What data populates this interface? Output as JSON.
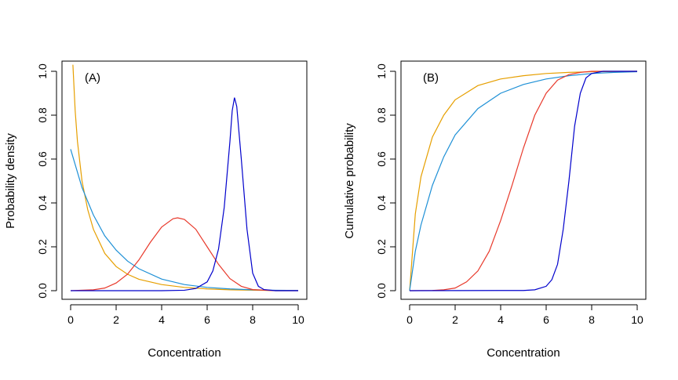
{
  "chart_data": [
    {
      "type": "line",
      "panel_label": "(A)",
      "xlabel": "Concentration",
      "ylabel": "Probability density",
      "xlim": [
        0,
        10
      ],
      "ylim": [
        0,
        1
      ],
      "x_ticks": [
        "0",
        "2",
        "4",
        "6",
        "8",
        "10"
      ],
      "y_ticks": [
        "0.0",
        "0.2",
        "0.4",
        "0.6",
        "0.8",
        "1.0"
      ],
      "grid": false,
      "legend": "none",
      "series": [
        {
          "color": "#E69F00",
          "x": [
            0.1,
            0.2,
            0.3,
            0.5,
            0.75,
            1,
            1.5,
            2,
            2.5,
            3,
            4,
            5,
            6,
            7,
            8,
            9,
            10
          ],
          "values": [
            1.03,
            0.82,
            0.68,
            0.5,
            0.37,
            0.28,
            0.17,
            0.11,
            0.075,
            0.052,
            0.028,
            0.015,
            0.008,
            0.004,
            0.002,
            0.001,
            0.0005
          ]
        },
        {
          "color": "#1E90D6",
          "x": [
            0,
            0.5,
            1,
            1.5,
            2,
            2.5,
            3,
            4,
            5,
            6,
            7,
            8,
            9,
            10
          ],
          "values": [
            0.645,
            0.47,
            0.345,
            0.25,
            0.185,
            0.135,
            0.1,
            0.053,
            0.028,
            0.015,
            0.008,
            0.004,
            0.002,
            0.001
          ]
        },
        {
          "color": "#E8392B",
          "x": [
            0,
            1,
            1.5,
            2,
            2.5,
            3,
            3.5,
            4,
            4.5,
            4.7,
            5,
            5.5,
            6,
            6.5,
            7,
            7.5,
            8,
            9,
            10
          ],
          "values": [
            0,
            0.004,
            0.012,
            0.035,
            0.075,
            0.14,
            0.22,
            0.29,
            0.328,
            0.332,
            0.325,
            0.28,
            0.2,
            0.12,
            0.055,
            0.02,
            0.005,
            0,
            0
          ]
        },
        {
          "color": "#0000CC",
          "x": [
            0,
            4,
            5,
            5.5,
            6,
            6.25,
            6.5,
            6.75,
            7,
            7.1,
            7.2,
            7.3,
            7.5,
            7.75,
            8,
            8.25,
            8.5,
            9,
            10
          ],
          "values": [
            0,
            0,
            0.002,
            0.01,
            0.04,
            0.09,
            0.19,
            0.38,
            0.68,
            0.82,
            0.88,
            0.84,
            0.6,
            0.28,
            0.08,
            0.02,
            0.005,
            0,
            0
          ]
        }
      ]
    },
    {
      "type": "line",
      "panel_label": "(B)",
      "xlabel": "Concentration",
      "ylabel": "Cumulative probability",
      "xlim": [
        0,
        10
      ],
      "ylim": [
        0,
        1
      ],
      "x_ticks": [
        "0",
        "2",
        "4",
        "6",
        "8",
        "10"
      ],
      "y_ticks": [
        "0.0",
        "0.2",
        "0.4",
        "0.6",
        "0.8",
        "1.0"
      ],
      "grid": false,
      "legend": "none",
      "series": [
        {
          "color": "#E69F00",
          "x": [
            0,
            0.25,
            0.5,
            1,
            1.5,
            2,
            3,
            4,
            5,
            6,
            7,
            8,
            9,
            10
          ],
          "values": [
            0,
            0.35,
            0.52,
            0.7,
            0.8,
            0.87,
            0.935,
            0.965,
            0.98,
            0.99,
            0.995,
            0.998,
            0.999,
            1
          ]
        },
        {
          "color": "#1E90D6",
          "x": [
            0,
            0.25,
            0.5,
            1,
            1.5,
            2,
            3,
            4,
            5,
            6,
            7,
            8,
            9,
            10
          ],
          "values": [
            0,
            0.18,
            0.3,
            0.48,
            0.61,
            0.71,
            0.83,
            0.9,
            0.94,
            0.965,
            0.98,
            0.99,
            0.995,
            0.998
          ]
        },
        {
          "color": "#E8392B",
          "x": [
            0,
            1,
            1.5,
            2,
            2.5,
            3,
            3.5,
            4,
            4.5,
            5,
            5.5,
            6,
            6.5,
            7,
            7.5,
            8,
            9,
            10
          ],
          "values": [
            0,
            0.001,
            0.004,
            0.012,
            0.04,
            0.09,
            0.18,
            0.32,
            0.48,
            0.65,
            0.8,
            0.9,
            0.96,
            0.985,
            0.995,
            1,
            1,
            1
          ]
        },
        {
          "color": "#0000CC",
          "x": [
            0,
            5,
            5.5,
            6,
            6.25,
            6.5,
            6.75,
            7,
            7.25,
            7.5,
            7.75,
            8,
            8.5,
            10
          ],
          "values": [
            0,
            0.001,
            0.004,
            0.02,
            0.05,
            0.12,
            0.28,
            0.5,
            0.75,
            0.9,
            0.97,
            0.99,
            1,
            1
          ]
        }
      ]
    }
  ]
}
